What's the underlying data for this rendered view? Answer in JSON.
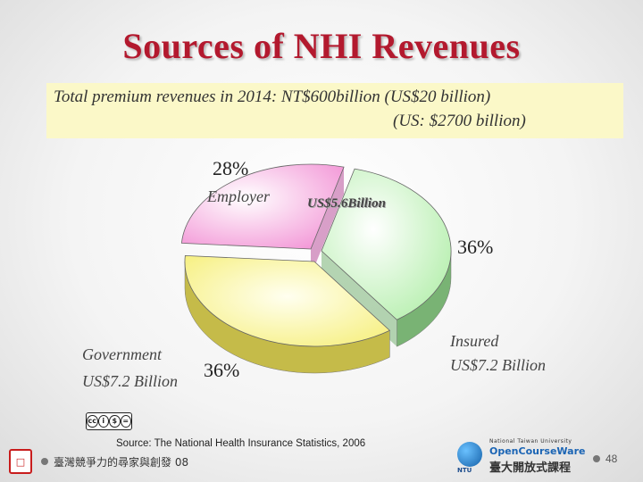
{
  "title": "Sources of NHI Revenues",
  "banner": {
    "line1": "Total premium revenues in 2014: NT$600billion (US$20 billion)",
    "line2": "(US: $2700 billion)"
  },
  "chart_data": {
    "type": "pie",
    "style": "3d-exploded",
    "slices": [
      {
        "label": "Employer",
        "value": 28,
        "amount": "US$5.6Billion",
        "color": "#f8c8e8"
      },
      {
        "label": "Insured",
        "value": 36,
        "amount": "US$7.2 Billion",
        "color": "#cdf5c8"
      },
      {
        "label": "Government",
        "value": 36,
        "amount": "US$7.2 Billion",
        "color": "#faf6a8"
      }
    ],
    "percent_labels": [
      "28%",
      "36%",
      "36%"
    ],
    "slice_texts": {
      "employer": "Employer",
      "employer_amount": "US$5.6Billion",
      "insured": "Insured",
      "insured_amount": "US$7.2 Billion",
      "government": "Government",
      "government_amount": "US$7.2 Billion"
    }
  },
  "license_badge": "cc",
  "source": "Source: The National Health Insurance Statistics, 2006",
  "footer": {
    "left_text": "臺灣競爭力的尋家與創發 08",
    "logo_univ": "National Taiwan University",
    "logo_ocw": "OpenCourseWare",
    "logo_zh": "臺大開放式課程",
    "logo_ntu": "NTU",
    "page": "48"
  },
  "colors": {
    "title": "#b3192e",
    "banner": "#fbf8c8"
  }
}
